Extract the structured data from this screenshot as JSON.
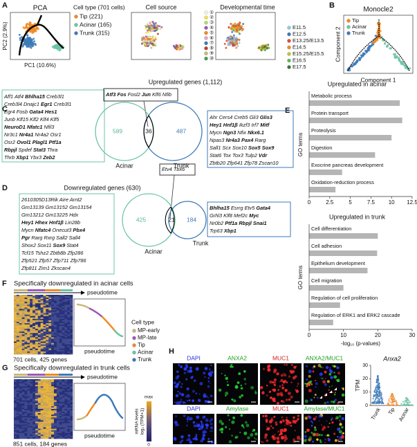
{
  "figure": {
    "A": {
      "label": "A",
      "pca": {
        "title": "PCA",
        "xlabel": "PC1 (10.6%)",
        "ylabel": "PC2 (2.9%)"
      },
      "cell_type": {
        "title": "Cell type (701 cells)",
        "items": [
          {
            "name": "Tip (221)",
            "color": "#f08a24"
          },
          {
            "name": "Acinar (165)",
            "color": "#6cc4a4"
          },
          {
            "name": "Trunk (315)",
            "color": "#3d7ab8"
          }
        ]
      },
      "cell_source": {
        "title": "Cell source",
        "items": [
          {
            "name": "①",
            "color": "#f4f1dc"
          },
          {
            "name": "②",
            "color": "#f2e34a"
          },
          {
            "name": "③",
            "color": "#b6d96b"
          },
          {
            "name": "④",
            "color": "#9b59b6"
          },
          {
            "name": "⑤",
            "color": "#f08a24"
          },
          {
            "name": "⑥",
            "color": "#e7a3c4"
          },
          {
            "name": "⑦",
            "color": "#3d7ab8"
          },
          {
            "name": "⑧",
            "color": "#c0392b"
          },
          {
            "name": "⑨",
            "color": "#c8b87a"
          },
          {
            "name": "⑩",
            "color": "#3fa34d"
          }
        ]
      },
      "dev_time": {
        "title": "Developmental time",
        "items": [
          {
            "name": "E11.5",
            "color": "#8ecae6"
          },
          {
            "name": "E12.5",
            "color": "#3d7ab8"
          },
          {
            "name": "E13.25/E13.5",
            "color": "#e34a33"
          },
          {
            "name": "E14.5",
            "color": "#f08a24"
          },
          {
            "name": "E15.25/E15.5",
            "color": "#c2c23a"
          },
          {
            "name": "E16.5",
            "color": "#5cb85c"
          },
          {
            "name": "E17.5",
            "color": "#2e7d32"
          }
        ]
      }
    },
    "B": {
      "label": "B",
      "title": "Monocle2",
      "xlabel": "Component 1",
      "ylabel": "Component 2",
      "legend": [
        {
          "name": "Tip",
          "color": "#f08a24"
        },
        {
          "name": "Acinar",
          "color": "#6cc4a4"
        },
        {
          "name": "Trunk",
          "color": "#3d7ab8"
        }
      ]
    },
    "C": {
      "label": "C",
      "title": "Upregulated genes (1,112)",
      "left_genes": [
        [
          "Aff1",
          "Atf4",
          {
            "b": "Bhlha15"
          },
          "Creb3l1"
        ],
        [
          "Creb3l4",
          "Dnajc1",
          {
            "b": "Egr1"
          },
          "Creb3l1"
        ],
        [
          "Egr4",
          "Fosb",
          {
            "b": "Gata4"
          },
          {
            "b": "Hes1"
          }
        ],
        [
          "Junb",
          "Klf15",
          "Klf2",
          "Klf4",
          "Klf5"
        ],
        [
          {
            "b": "NeuroD1"
          },
          {
            "b": "Nfatc1"
          },
          "Nfil3"
        ],
        [
          "Nr3c1",
          {
            "b": "Nr4a1"
          },
          "Nr4a2",
          "Osr1"
        ],
        [
          "Osr2",
          {
            "b": "Ovol1"
          },
          {
            "b": "Plagl1"
          },
          {
            "b": "Ptf1a"
          }
        ],
        [
          {
            "b": "Rbpjl"
          },
          "Spdef",
          {
            "b": "Stat3"
          },
          "Thra"
        ],
        [
          "Thrb",
          {
            "b": "Xbp1"
          },
          "Ybx3",
          {
            "b": "Zeb2"
          }
        ]
      ],
      "shared_genes": [
        [
          {
            "b": "Atf3"
          },
          {
            "b": "Fos"
          },
          "Fosl2",
          {
            "b": "Jun"
          },
          "Klf6",
          "Nfib"
        ]
      ],
      "right_genes": [
        [
          "Ahr",
          "Cers4",
          "Creb5",
          "Gli3",
          {
            "b": "Glis3"
          }
        ],
        [
          {
            "b": "Hey1"
          },
          {
            "b": "Hnf1β"
          },
          "Ikzf3",
          "Irf7",
          {
            "b": "Mitf"
          }
        ],
        [
          "Mycn",
          {
            "b": "Ngn3"
          },
          "Nfix",
          {
            "b": "Nkx6.1"
          }
        ],
        [
          "Npas3",
          {
            "b": "Nr4a3"
          },
          {
            "b": "Pax4"
          },
          "Rarg"
        ],
        [
          "Sall1",
          "Scx",
          "Sox10",
          {
            "b": "Sox5"
          },
          {
            "b": "Sox9"
          }
        ],
        [
          "Stat6",
          "Tox",
          "Tox3",
          "Tulp2",
          {
            "b": "Vdr"
          }
        ],
        [
          "Zbtb20",
          "Zfp641",
          "Zfp78",
          "Zscan10"
        ]
      ],
      "venn": {
        "left": 589,
        "both": 36,
        "right": 487,
        "left_label": "Acinar",
        "right_label": "Trunk"
      }
    },
    "D": {
      "label": "D",
      "title": "Downregulated genes (630)",
      "left_genes": [
        [
          "2610305D13Rik",
          "Aire",
          "Arnt2"
        ],
        [
          "Gm13139",
          "Gm13152",
          "Gm13154"
        ],
        [
          "Gm13212",
          "Gm13225",
          "Hdx"
        ],
        [
          {
            "b": "Hey1"
          },
          {
            "b": "Hhex"
          },
          {
            "b": "Hnf1β"
          },
          "Lin28b"
        ],
        [
          "Mycn",
          {
            "b": "Nfatc4"
          },
          "Onecut3",
          {
            "b": "Pbx4"
          }
        ],
        [
          {
            "b": "Pgr"
          },
          "Rarg",
          "Rxrg",
          "Sall2",
          "Sall4"
        ],
        [
          "Shox2",
          "Sox11",
          {
            "b": "Sox9"
          },
          "Stat4"
        ],
        [
          "Tcf15",
          "Tshz2",
          "Zbtb8b",
          "Zfp286"
        ],
        [
          "Zfp521",
          "Zfp57",
          "Zfp711",
          "Zfp786"
        ],
        [
          "Zfp811",
          "Zim1",
          "Zkscan4"
        ]
      ],
      "shared_genes": [
        [
          "Etv4",
          "Tbx6"
        ]
      ],
      "right_genes": [
        [
          {
            "b": "Bhlha15"
          },
          "Esrrg",
          "Etv5",
          {
            "b": "Gata4"
          }
        ],
        [
          "Grhl3",
          "Klf8",
          "Mef2c",
          {
            "b": "Myc"
          }
        ],
        [
          "Nr0b2",
          {
            "b": "Ptf1a"
          },
          {
            "b": "Rbpjl"
          },
          {
            "b": "Snai1"
          }
        ],
        [
          "Trp63",
          {
            "b": "Xbp1"
          }
        ]
      ],
      "venn": {
        "left": 425,
        "both": 21,
        "right": 184,
        "left_label": "Acinar",
        "right_label": "Trunk"
      }
    },
    "E": {
      "label": "E"
    },
    "F": {
      "label": "F",
      "title": "Specifically downregulated in acinar cells",
      "arrow_label": "pseudotime",
      "curve_label": "pseudotime",
      "caption": "701 cells, 425 genes"
    },
    "G": {
      "label": "G",
      "title": "Specifically downregulated in trunk cells",
      "arrow_label": "pseudotime",
      "curve_label": "pseudotime",
      "caption": "851 cells, 184 genes"
    },
    "cell_type_legend": {
      "title": "Cell type",
      "items": [
        {
          "name": "MP-early",
          "color": "#c8b87a"
        },
        {
          "name": "MP-late",
          "color": "#9b59b6"
        },
        {
          "name": "Tip",
          "color": "#f08a24"
        },
        {
          "name": "Acinar",
          "color": "#6cc4a4"
        },
        {
          "name": "Trunk",
          "color": "#3d7ab8"
        }
      ]
    },
    "colorbar": {
      "title": "mRNA levels",
      "unit": "log₂ (TPM+1)",
      "max": "max",
      "min": "0"
    },
    "H": {
      "label": "H",
      "row1": [
        {
          "name": "DAPI",
          "color": "#2b2bd6"
        },
        {
          "name": "ANXA2",
          "color": "#1f9e1f"
        },
        {
          "name": "MUC1",
          "color": "#d42020"
        },
        {
          "name": "ANXA2/MUC1",
          "color": "#1f9e1f"
        }
      ],
      "row2": [
        {
          "name": "DAPI",
          "color": "#2b2bd6"
        },
        {
          "name": "Amylase",
          "color": "#1f9e1f"
        },
        {
          "name": "MUC1",
          "color": "#d42020"
        },
        {
          "name": "Amylase/MUC1",
          "color": "#1f9e1f"
        }
      ]
    }
  },
  "chart_data": [
    {
      "type": "bar",
      "title": "Upregulated in acinar",
      "ylabel": "GO terms",
      "categories": [
        "Metabolic process",
        "Protein transport",
        "Proteolysis",
        "Digestion",
        "Exocrine pancreas development",
        "Oxidation-reduction process"
      ],
      "values": [
        11,
        11.3,
        10,
        8,
        4,
        3.2
      ],
      "color": "#b5b5b5",
      "xlim": [
        0,
        12.5
      ],
      "xticks": [
        0,
        2.5,
        5,
        7.5,
        10,
        12.5
      ]
    },
    {
      "type": "bar",
      "title": "Upregulated in trunk",
      "ylabel": "GO terms",
      "xlabel": "-log₁₀ (p-values)",
      "categories": [
        "Cell differentiation",
        "Cell adhesion",
        "Epithelium development",
        "Cell migration",
        "Regulation of cell proliferation",
        "Regulation of ERK1 and ERK2 cascade"
      ],
      "values": [
        20,
        19.8,
        17,
        10,
        9,
        7
      ],
      "color": "#b5b5b5",
      "xlim": [
        0,
        30
      ],
      "xticks": [
        0,
        10,
        20,
        30
      ]
    },
    {
      "type": "strip",
      "title": "Anxa2",
      "ylabel": "TPM",
      "categories": [
        "Trunk",
        "Tip",
        "Acinar"
      ],
      "colors": [
        "#3d7ab8",
        "#f08a24",
        "#6cc4a4"
      ],
      "ylim": [
        0,
        30
      ],
      "yticks": [
        0,
        10,
        20,
        30
      ]
    }
  ]
}
